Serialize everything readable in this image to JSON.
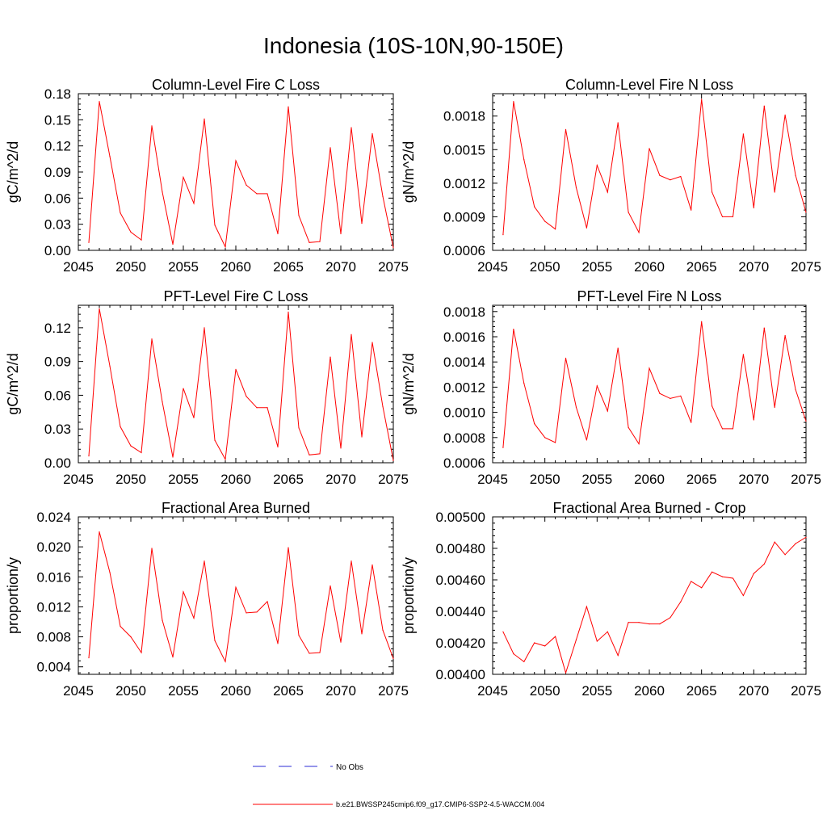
{
  "title": "Indonesia (10S-10N,90-150E)",
  "colors": {
    "model": "#ff0000",
    "obs": "#2b2bd6",
    "axis": "#000000"
  },
  "legend": {
    "obs_label": "No Obs",
    "model_label": "b.e21.BWSSP245cmip6.f09_g17.CMIP6-SSP2-4.5-WACCM.004"
  },
  "chart_data": [
    {
      "type": "line",
      "title": "Column-Level Fire C Loss",
      "ylabel": "gC/m^2/d",
      "xlim": [
        2045,
        2075
      ],
      "ylim": [
        0,
        0.18
      ],
      "xticks": [
        2045,
        2050,
        2055,
        2060,
        2065,
        2070,
        2075
      ],
      "xtick_labels": [
        "2045",
        "2050",
        "2055",
        "2060",
        "2065",
        "2070",
        "2075"
      ],
      "yticks": [
        0,
        0.03,
        0.06,
        0.09,
        0.12,
        0.15,
        0.18
      ],
      "ytick_labels": [
        "0.00",
        "0.03",
        "0.06",
        "0.09",
        "0.12",
        "0.15",
        "0.18"
      ],
      "x": [
        2046,
        2047,
        2048,
        2049,
        2050,
        2051,
        2052,
        2053,
        2054,
        2055,
        2056,
        2057,
        2058,
        2059,
        2060,
        2061,
        2062,
        2063,
        2064,
        2065,
        2066,
        2067,
        2068,
        2069,
        2070,
        2071,
        2072,
        2073,
        2074,
        2075
      ],
      "values": [
        0.009,
        0.171,
        0.108,
        0.043,
        0.021,
        0.012,
        0.143,
        0.067,
        0.007,
        0.084,
        0.054,
        0.151,
        0.029,
        0.004,
        0.103,
        0.075,
        0.065,
        0.065,
        0.019,
        0.165,
        0.04,
        0.009,
        0.01,
        0.118,
        0.019,
        0.141,
        0.031,
        0.134,
        0.062,
        0.003
      ]
    },
    {
      "type": "line",
      "title": "Column-Level Fire N Loss",
      "ylabel": "gN/m^2/d",
      "xlim": [
        2045,
        2075
      ],
      "ylim": [
        0.0006,
        0.002
      ],
      "xticks": [
        2045,
        2050,
        2055,
        2060,
        2065,
        2070,
        2075
      ],
      "xtick_labels": [
        "2045",
        "2050",
        "2055",
        "2060",
        "2065",
        "2070",
        "2075"
      ],
      "yticks": [
        0.0006,
        0.0009,
        0.0012,
        0.0015,
        0.0018
      ],
      "ytick_labels": [
        "0.0006",
        "0.0009",
        "0.0012",
        "0.0015",
        "0.0018"
      ],
      "x": [
        2046,
        2047,
        2048,
        2049,
        2050,
        2051,
        2052,
        2053,
        2054,
        2055,
        2056,
        2057,
        2058,
        2059,
        2060,
        2061,
        2062,
        2063,
        2064,
        2065,
        2066,
        2067,
        2068,
        2069,
        2070,
        2071,
        2072,
        2073,
        2074,
        2075
      ],
      "values": [
        0.00074,
        0.00193,
        0.00141,
        0.00099,
        0.00086,
        0.00079,
        0.00168,
        0.00116,
        0.0008,
        0.00136,
        0.00112,
        0.00174,
        0.00094,
        0.00076,
        0.00151,
        0.00127,
        0.00123,
        0.00126,
        0.00096,
        0.00195,
        0.00112,
        0.0009,
        0.0009,
        0.00164,
        0.00098,
        0.00189,
        0.00112,
        0.00181,
        0.00127,
        0.00094
      ]
    },
    {
      "type": "line",
      "title": "PFT-Level Fire C Loss",
      "ylabel": "gC/m^2/d",
      "xlim": [
        2045,
        2075
      ],
      "ylim": [
        0,
        0.14
      ],
      "xticks": [
        2045,
        2050,
        2055,
        2060,
        2065,
        2070,
        2075
      ],
      "xtick_labels": [
        "2045",
        "2050",
        "2055",
        "2060",
        "2065",
        "2070",
        "2075"
      ],
      "yticks": [
        0,
        0.03,
        0.06,
        0.09,
        0.12
      ],
      "ytick_labels": [
        "0.00",
        "0.03",
        "0.06",
        "0.09",
        "0.12"
      ],
      "x": [
        2046,
        2047,
        2048,
        2049,
        2050,
        2051,
        2052,
        2053,
        2054,
        2055,
        2056,
        2057,
        2058,
        2059,
        2060,
        2061,
        2062,
        2063,
        2064,
        2065,
        2066,
        2067,
        2068,
        2069,
        2070,
        2071,
        2072,
        2073,
        2074,
        2075
      ],
      "values": [
        0.006,
        0.137,
        0.086,
        0.032,
        0.015,
        0.009,
        0.11,
        0.054,
        0.005,
        0.066,
        0.04,
        0.12,
        0.02,
        0.003,
        0.083,
        0.059,
        0.049,
        0.049,
        0.014,
        0.134,
        0.031,
        0.007,
        0.008,
        0.094,
        0.013,
        0.114,
        0.023,
        0.107,
        0.05,
        0.002
      ]
    },
    {
      "type": "line",
      "title": "PFT-Level Fire N Loss",
      "ylabel": "gN/m^2/d",
      "xlim": [
        2045,
        2075
      ],
      "ylim": [
        0.0006,
        0.00185
      ],
      "xticks": [
        2045,
        2050,
        2055,
        2060,
        2065,
        2070,
        2075
      ],
      "xtick_labels": [
        "2045",
        "2050",
        "2055",
        "2060",
        "2065",
        "2070",
        "2075"
      ],
      "yticks": [
        0.0006,
        0.0008,
        0.001,
        0.0012,
        0.0014,
        0.0016,
        0.0018
      ],
      "ytick_labels": [
        "0.0006",
        "0.0008",
        "0.0010",
        "0.0012",
        "0.0014",
        "0.0016",
        "0.0018"
      ],
      "x": [
        2046,
        2047,
        2048,
        2049,
        2050,
        2051,
        2052,
        2053,
        2054,
        2055,
        2056,
        2057,
        2058,
        2059,
        2060,
        2061,
        2062,
        2063,
        2064,
        2065,
        2066,
        2067,
        2068,
        2069,
        2070,
        2071,
        2072,
        2073,
        2074,
        2075
      ],
      "values": [
        0.00072,
        0.00166,
        0.00123,
        0.00091,
        0.0008,
        0.00076,
        0.00143,
        0.00104,
        0.00078,
        0.00121,
        0.00101,
        0.00151,
        0.00088,
        0.00075,
        0.00135,
        0.00115,
        0.00111,
        0.00113,
        0.00092,
        0.00172,
        0.00105,
        0.00087,
        0.00087,
        0.00146,
        0.00094,
        0.00167,
        0.00104,
        0.00161,
        0.00118,
        0.00093
      ]
    },
    {
      "type": "line",
      "title": "Fractional Area Burned",
      "ylabel": "proportion/y",
      "xlim": [
        2045,
        2075
      ],
      "ylim": [
        0.003,
        0.024
      ],
      "xticks": [
        2045,
        2050,
        2055,
        2060,
        2065,
        2070,
        2075
      ],
      "xtick_labels": [
        "2045",
        "2050",
        "2055",
        "2060",
        "2065",
        "2070",
        "2075"
      ],
      "yticks": [
        0.004,
        0.008,
        0.012,
        0.016,
        0.02,
        0.024
      ],
      "ytick_labels": [
        "0.004",
        "0.008",
        "0.012",
        "0.016",
        "0.020",
        "0.024"
      ],
      "x": [
        2046,
        2047,
        2048,
        2049,
        2050,
        2051,
        2052,
        2053,
        2054,
        2055,
        2056,
        2057,
        2058,
        2059,
        2060,
        2061,
        2062,
        2063,
        2064,
        2065,
        2066,
        2067,
        2068,
        2069,
        2070,
        2071,
        2072,
        2073,
        2074,
        2075
      ],
      "values": [
        0.0052,
        0.022,
        0.0166,
        0.0094,
        0.008,
        0.0059,
        0.0198,
        0.0102,
        0.0053,
        0.014,
        0.0105,
        0.0181,
        0.0075,
        0.0047,
        0.0146,
        0.0112,
        0.0113,
        0.0127,
        0.0071,
        0.0199,
        0.0082,
        0.0058,
        0.0059,
        0.0148,
        0.0073,
        0.0181,
        0.0084,
        0.0176,
        0.0089,
        0.0051
      ]
    },
    {
      "type": "line",
      "title": "Fractional Area Burned - Crop",
      "ylabel": "proportion/y",
      "xlim": [
        2045,
        2075
      ],
      "ylim": [
        0.004,
        0.005
      ],
      "xticks": [
        2045,
        2050,
        2055,
        2060,
        2065,
        2070,
        2075
      ],
      "xtick_labels": [
        "2045",
        "2050",
        "2055",
        "2060",
        "2065",
        "2070",
        "2075"
      ],
      "yticks": [
        0.004,
        0.0042,
        0.0044,
        0.0046,
        0.0048,
        0.005
      ],
      "ytick_labels": [
        "0.00400",
        "0.00420",
        "0.00440",
        "0.00460",
        "0.00480",
        "0.00500"
      ],
      "x": [
        2046,
        2047,
        2048,
        2049,
        2050,
        2051,
        2052,
        2053,
        2054,
        2055,
        2056,
        2057,
        2058,
        2059,
        2060,
        2061,
        2062,
        2063,
        2064,
        2065,
        2066,
        2067,
        2068,
        2069,
        2070,
        2071,
        2072,
        2073,
        2074,
        2075
      ],
      "values": [
        0.00427,
        0.00413,
        0.00408,
        0.0042,
        0.00418,
        0.00424,
        0.00401,
        0.00422,
        0.00443,
        0.00421,
        0.00427,
        0.00412,
        0.00433,
        0.00433,
        0.00432,
        0.00432,
        0.00436,
        0.00446,
        0.00459,
        0.00455,
        0.00465,
        0.00462,
        0.00461,
        0.0045,
        0.00464,
        0.0047,
        0.00484,
        0.00476,
        0.00483,
        0.00487
      ]
    }
  ]
}
